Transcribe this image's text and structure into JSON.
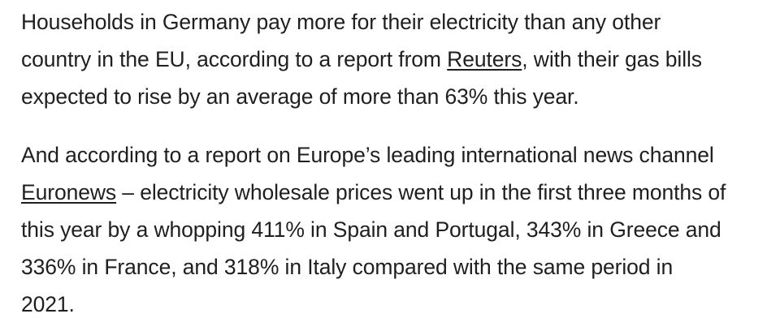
{
  "article": {
    "paragraph_1": {
      "line_1": "Households in Germany pay more for their electricity than any other",
      "line_2_before_link": "country in the EU, according to a report from ",
      "line_2_link": "Reuters",
      "line_2_after_link": ", with their gas bills",
      "line_3": "expected to rise by an average of more than 63% this year."
    },
    "paragraph_2": {
      "line_1": "And according to a report on Europe’s leading international news channel",
      "line_2_link": "Euronews",
      "line_2_after_link": " – electricity wholesale prices went up in the first three months of",
      "line_3": "this year by a whopping 411% in Spain and Portugal, 343% in Greece and",
      "line_4": "336% in France, and 318% in Italy compared with the same period in",
      "line_5": "2021."
    }
  }
}
